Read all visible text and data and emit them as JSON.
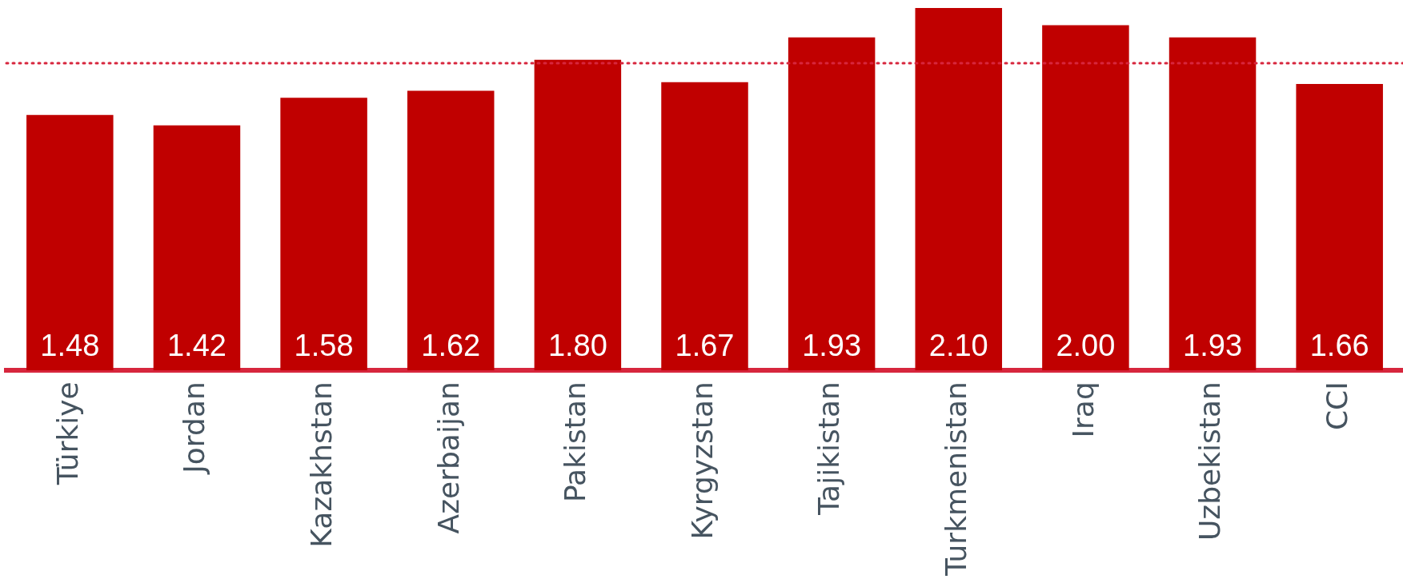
{
  "chart_data": {
    "type": "bar",
    "categories": [
      "Türkiye",
      "Jordan",
      "Kazakhstan",
      "Azerbaijan",
      "Pakistan",
      "Kyrgyzstan",
      "Tajikistan",
      "Turkmenistan",
      "Iraq",
      "Uzbekistan",
      "CCI"
    ],
    "values": [
      1.48,
      1.42,
      1.58,
      1.62,
      1.8,
      1.67,
      1.93,
      2.1,
      2.0,
      1.93,
      1.66
    ],
    "color": "#c00000",
    "relative": false,
    "ylim": [
      0,
      2.1
    ],
    "value_labels": [
      "1.48",
      "1.42",
      "1.58",
      "1.62",
      "1.80",
      "1.67",
      "1.93",
      "2.10",
      "2.00",
      "1.93",
      "1.66"
    ],
    "grid": false,
    "legend": false,
    "ref_lines": [
      {
        "axis": "y",
        "value": 1.78,
        "color": "#d7263d",
        "line_style": "dotted"
      }
    ]
  }
}
